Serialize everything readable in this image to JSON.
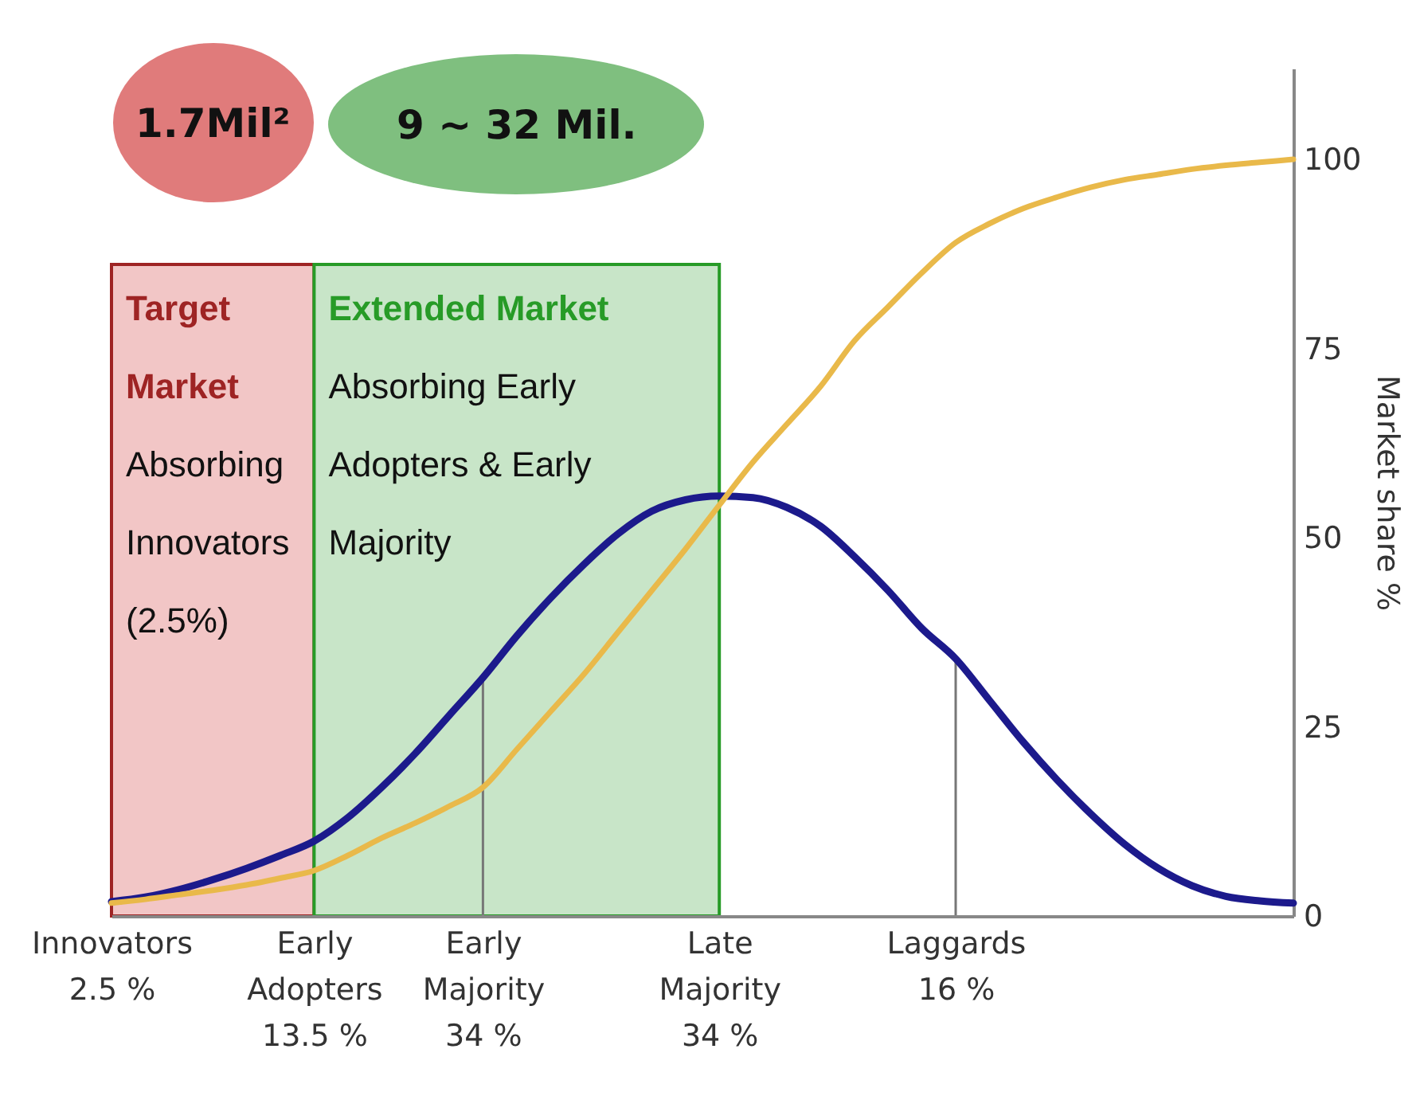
{
  "chart_data": {
    "type": "line",
    "ylabel": "Market share %",
    "categories": [
      "Innovators 2.5 %",
      null,
      null,
      null,
      null,
      null,
      "Early Adopters 13.5 %",
      null,
      null,
      null,
      null,
      "Early Majority 34 %",
      null,
      null,
      null,
      null,
      null,
      null,
      "Late Majority 34 %",
      null,
      null,
      null,
      null,
      null,
      null,
      "Laggards 16 %",
      null,
      null,
      null,
      null,
      null,
      null,
      null,
      null,
      null,
      null
    ],
    "series": [
      {
        "color": "#1c1a8c",
        "values": [
          1.9,
          2.5,
          3.5,
          4.8,
          6.3,
          8,
          9.9,
          13,
          17,
          21.5,
          26.5,
          31.5,
          37,
          42,
          46.5,
          50.5,
          53.5,
          55,
          55.5,
          55.3,
          54,
          51.5,
          47.5,
          43,
          38,
          34,
          28.5,
          23,
          18,
          13.5,
          9.5,
          6.3,
          4,
          2.6,
          2,
          1.7
        ]
      },
      {
        "color": "#e9b94a",
        "values": [
          1.7,
          2.2,
          2.8,
          3.4,
          4.1,
          5,
          6,
          8,
          10.3,
          12.3,
          14.5,
          17,
          22,
          27,
          32,
          37.5,
          43,
          48.5,
          54.3,
          60,
          65,
          70,
          76,
          80.5,
          85,
          89,
          91.5,
          93.5,
          95,
          96.3,
          97.3,
          98,
          98.7,
          99.2,
          99.6,
          100
        ]
      }
    ],
    "ylim": [
      0,
      112
    ],
    "yticks": [
      0,
      25,
      50,
      75,
      100
    ],
    "bands": [
      {
        "axis": "x",
        "from": "Innovators 2.5 %",
        "to": "Early Adopters 13.5 %",
        "label": "Target Market",
        "color": "#f2c6c6"
      },
      {
        "axis": "x",
        "from": "Early Adopters 13.5 %",
        "to": "Late Majority 34 %",
        "label": "Extended Market",
        "color": "#c8e5c8"
      }
    ],
    "ref_lines": [
      {
        "axis": "x",
        "value": "Early Majority 34 %"
      },
      {
        "axis": "x",
        "value": "Laggards 16 %"
      }
    ],
    "annotations": [
      "1.7Mil²",
      "9 ~ 32 Mil.",
      "Absorbing Innovators (2.5%)",
      "Absorbing Early Adopters & Early Majority"
    ]
  }
}
